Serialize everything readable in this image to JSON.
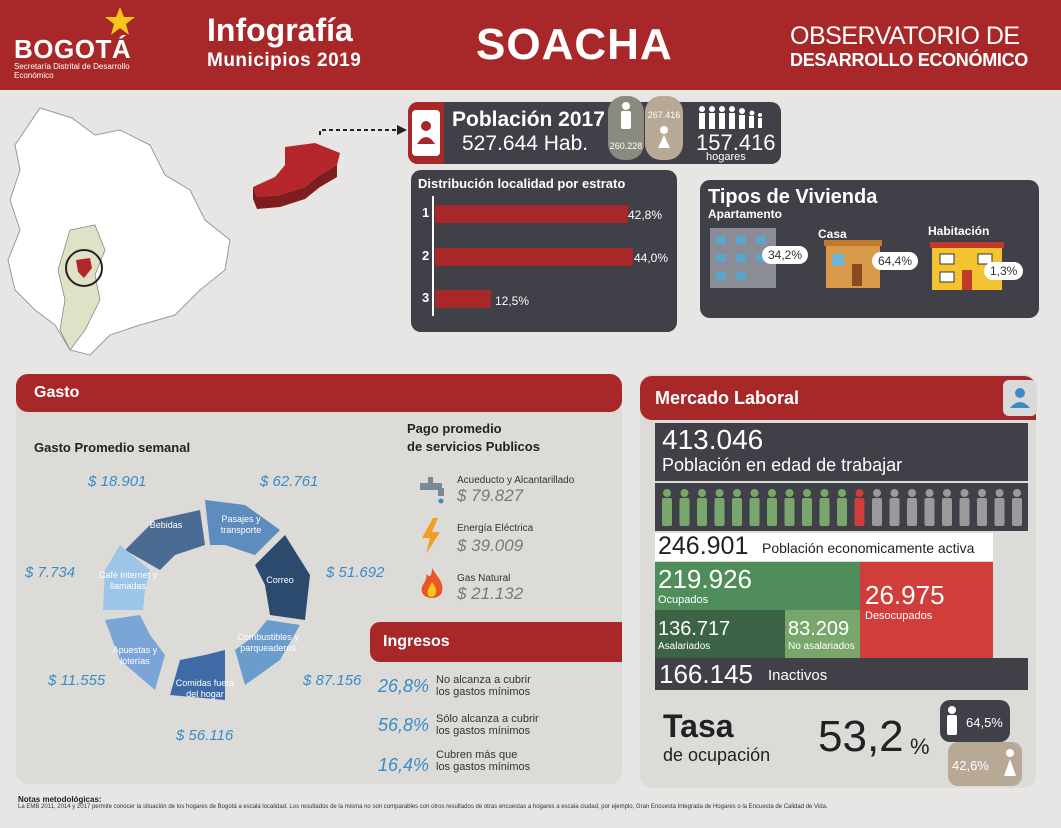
{
  "header": {
    "logo": "BOGOTÁ",
    "logo_sub": "Secretaría Distrital de Desarrollo Económico",
    "title": "Infografía",
    "subtitle": "Municipios 2019",
    "city": "SOACHA",
    "observatorio_line1": "OBSERVATORIO DE",
    "observatorio_line2": "DESARROLLO ECONÓMICO"
  },
  "poblacion": {
    "title": "Población 2017",
    "value": "527.644 Hab.",
    "men": "260.228",
    "women": "267.416",
    "hogares_value": "157.416",
    "hogares_label": "hogares"
  },
  "estrato": {
    "title": "Distribución localidad por estrato",
    "rows": [
      {
        "num": "1",
        "label": "42,8%",
        "value": 42.8
      },
      {
        "num": "2",
        "label": "44,0%",
        "value": 44.0
      },
      {
        "num": "3",
        "label": "12,5%",
        "value": 12.5
      }
    ]
  },
  "vivienda": {
    "title": "Tipos de Vivienda",
    "apartamento": {
      "label": "Apartamento",
      "value": "34,2%"
    },
    "casa": {
      "label": "Casa",
      "value": "64,4%"
    },
    "habitacion": {
      "label": "Habitación",
      "value": "1,3%"
    }
  },
  "gasto": {
    "title": "Gasto",
    "semanal_title": "Gasto Promedio semanal",
    "segments": [
      {
        "label": "Bebidas",
        "amount": "$ 18.901"
      },
      {
        "label": "Pasajes y transporte",
        "amount": "$ 62.761"
      },
      {
        "label": "Correo",
        "amount": "$ 51.692"
      },
      {
        "label": "Combustibles y parqueaderos",
        "amount": "$ 87.156"
      },
      {
        "label": "Comidas fuera del hogar",
        "amount": "$ 56.116"
      },
      {
        "label": "Apuestas y loterías",
        "amount": "$ 11.555"
      },
      {
        "label": "Café internet y llamadas",
        "amount": "$ 7.734"
      }
    ],
    "pago_title_1": "Pago promedio",
    "pago_title_2": "de servicios Publicos",
    "servicios": [
      {
        "label": "Acueducto y Alcantarillado",
        "value": "$ 79.827",
        "icon": "faucet-icon"
      },
      {
        "label": "Energía Eléctrica",
        "value": "$ 39.009",
        "icon": "lightning-icon"
      },
      {
        "label": "Gas Natural",
        "value": "$ 21.132",
        "icon": "flame-icon"
      }
    ]
  },
  "ingresos": {
    "title": "Ingresos",
    "items": [
      {
        "pct": "26,8%",
        "line1": "No alcanza a cubrir",
        "line2": "los gastos mínimos"
      },
      {
        "pct": "56,8%",
        "line1": "Sólo alcanza a cubrir",
        "line2": "los gastos mínimos"
      },
      {
        "pct": "16,4%",
        "line1": "Cubren más que",
        "line2": "los gastos mínimos"
      }
    ]
  },
  "mercado": {
    "title": "Mercado Laboral",
    "pet_value": "413.046",
    "pet_label": "Población en edad de trabajar",
    "pea_value": "246.901",
    "pea_label": "Población economicamente activa",
    "ocupados_value": "219.926",
    "ocupados_label": "Ocupados",
    "desocupados_value": "26.975",
    "desocupados_label": "Desocupados",
    "asalariados_value": "136.717",
    "asalariados_label": "Asalariados",
    "noasalariados_value": "83.209",
    "noasalariados_label": "No asalariados",
    "inactivos_value": "166.145",
    "inactivos_label": "Inactivos",
    "tasa_title": "Tasa",
    "tasa_sub": "de ocupación",
    "tasa_value": "53,2",
    "tasa_pct": "%",
    "tasa_men": "64,5%",
    "tasa_women": "42,6%"
  },
  "notes": {
    "title": "Notas metodológicas:",
    "text": "La EMB 2011, 2014 y 2017 permite conocer la situación de los hogares de Bogotá a escala localidad. Los resultados de la misma no son comparables con otros resultados de otras encuestas a hogares a escala ciudad, por ejemplo, Gran Encuesta Integrada de Hogares o la Encuesta de Calidad de Vida."
  },
  "colors": {
    "brand": "#a8282a",
    "dark": "#3f4048",
    "accent": "#3a8cc6",
    "green": "#4f8e5b",
    "red": "#d03d3b"
  }
}
